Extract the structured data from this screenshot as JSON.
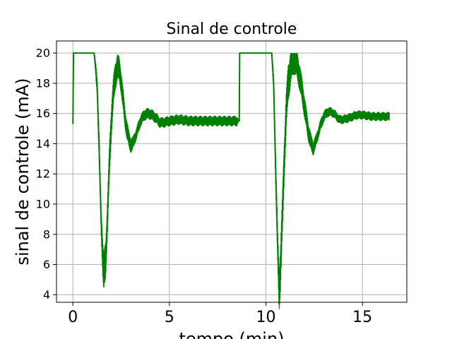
{
  "chart_data": {
    "type": "line",
    "title": "Sinal de controle",
    "xlabel": "tempo (min)",
    "ylabel": "sinal de controle (mA)",
    "xlim": [
      -0.85,
      17.3
    ],
    "ylim": [
      3.5,
      20.8
    ],
    "xticks": [
      0,
      5,
      10,
      15
    ],
    "yticks": [
      4,
      6,
      8,
      10,
      12,
      14,
      16,
      18,
      20
    ],
    "grid": true,
    "legend": "none",
    "series": [
      {
        "color": "#008000",
        "noise": [
          [
            0.0,
            0.0
          ],
          [
            1.1,
            0.0
          ],
          [
            1.2,
            0.6
          ],
          [
            1.6,
            1.4
          ],
          [
            2.3,
            0.9
          ],
          [
            3.2,
            0.4
          ],
          [
            4.5,
            0.35
          ],
          [
            8.5,
            0.35
          ],
          [
            8.6,
            0.0
          ],
          [
            10.3,
            0.0
          ],
          [
            10.4,
            0.6
          ],
          [
            10.7,
            1.6
          ],
          [
            11.6,
            1.0
          ],
          [
            12.6,
            0.4
          ],
          [
            13.5,
            0.3
          ],
          [
            16.4,
            0.3
          ]
        ],
        "points": [
          [
            0.0,
            15.3
          ],
          [
            0.03,
            20.0
          ],
          [
            1.1,
            20.0
          ],
          [
            1.25,
            18.0
          ],
          [
            1.35,
            14.0
          ],
          [
            1.45,
            9.5
          ],
          [
            1.55,
            6.3
          ],
          [
            1.6,
            5.3
          ],
          [
            1.7,
            6.4
          ],
          [
            1.8,
            9.5
          ],
          [
            1.9,
            13.0
          ],
          [
            2.0,
            15.7
          ],
          [
            2.1,
            17.4
          ],
          [
            2.2,
            18.5
          ],
          [
            2.3,
            19.1
          ],
          [
            2.4,
            18.9
          ],
          [
            2.5,
            18.1
          ],
          [
            2.6,
            16.9
          ],
          [
            2.7,
            15.7
          ],
          [
            2.8,
            14.9
          ],
          [
            2.9,
            14.3
          ],
          [
            3.0,
            13.9
          ],
          [
            3.1,
            14.0
          ],
          [
            3.3,
            14.7
          ],
          [
            3.5,
            15.5
          ],
          [
            3.7,
            15.9
          ],
          [
            3.9,
            16.0
          ],
          [
            4.1,
            15.9
          ],
          [
            4.3,
            15.7
          ],
          [
            4.5,
            15.4
          ],
          [
            4.7,
            15.4
          ],
          [
            5.0,
            15.5
          ],
          [
            5.5,
            15.6
          ],
          [
            6.0,
            15.5
          ],
          [
            6.5,
            15.5
          ],
          [
            7.0,
            15.5
          ],
          [
            7.5,
            15.5
          ],
          [
            8.0,
            15.5
          ],
          [
            8.5,
            15.5
          ],
          [
            8.62,
            15.5
          ],
          [
            8.64,
            20.0
          ],
          [
            10.3,
            20.0
          ],
          [
            10.4,
            18.0
          ],
          [
            10.5,
            12.5
          ],
          [
            10.6,
            7.5
          ],
          [
            10.68,
            4.4
          ],
          [
            10.75,
            5.6
          ],
          [
            10.85,
            9.0
          ],
          [
            10.95,
            13.0
          ],
          [
            11.05,
            16.0
          ],
          [
            11.15,
            18.0
          ],
          [
            11.3,
            19.2
          ],
          [
            11.45,
            19.7
          ],
          [
            11.6,
            19.3
          ],
          [
            11.75,
            18.4
          ],
          [
            11.9,
            17.3
          ],
          [
            12.05,
            16.0
          ],
          [
            12.2,
            14.8
          ],
          [
            12.35,
            14.0
          ],
          [
            12.45,
            13.7
          ],
          [
            12.6,
            14.2
          ],
          [
            12.8,
            15.1
          ],
          [
            13.0,
            15.8
          ],
          [
            13.2,
            16.1
          ],
          [
            13.4,
            16.1
          ],
          [
            13.6,
            15.9
          ],
          [
            13.8,
            15.6
          ],
          [
            14.0,
            15.6
          ],
          [
            14.3,
            15.7
          ],
          [
            14.7,
            15.9
          ],
          [
            15.0,
            15.9
          ],
          [
            15.5,
            15.8
          ],
          [
            16.0,
            15.8
          ],
          [
            16.4,
            15.8
          ]
        ]
      }
    ]
  }
}
